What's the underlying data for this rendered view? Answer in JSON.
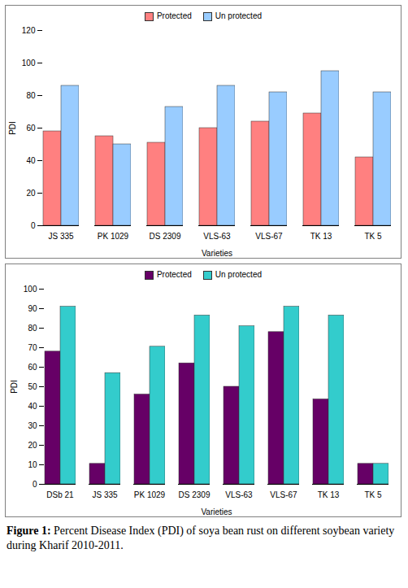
{
  "chart_data": [
    {
      "type": "bar",
      "x_label": "Varieties",
      "y_label": "PDI",
      "categories": [
        "JS 335",
        "PK 1029",
        "DS 2309",
        "VLS-63",
        "VLS-67",
        "TK 13",
        "TK 5"
      ],
      "series": [
        {
          "name": "Protected",
          "color": "#ff8080",
          "values": [
            58,
            55,
            51,
            60,
            64,
            69,
            42
          ]
        },
        {
          "name": "Un protected",
          "color": "#99ccff",
          "values": [
            86,
            50,
            73,
            86,
            82,
            95,
            82
          ]
        }
      ],
      "ylim": [
        0,
        120
      ],
      "yticks": [
        0,
        20,
        40,
        60,
        80,
        100,
        120
      ],
      "legend": "top"
    },
    {
      "type": "bar",
      "x_label": "Varieties",
      "y_label": "PDI",
      "categories": [
        "DSb 21",
        "JS 335",
        "PK 1029",
        "DS 2309",
        "VLS-63",
        "VLS-67",
        "TK 13",
        "TK 5"
      ],
      "series": [
        {
          "name": "Protected",
          "color": "#660066",
          "values": [
            68,
            10.5,
            46,
            62,
            50,
            78,
            43.5,
            10.5
          ]
        },
        {
          "name": "Un protected",
          "color": "#33cccc",
          "values": [
            91,
            57,
            70.5,
            86.5,
            81,
            91,
            86.5,
            10.5
          ]
        }
      ],
      "ylim": [
        0,
        100
      ],
      "yticks": [
        0,
        10,
        20,
        30,
        40,
        50,
        60,
        70,
        80,
        90,
        100
      ],
      "legend": "top"
    }
  ],
  "caption": {
    "label": "Figure 1:",
    "text": "Percent Disease Index (PDI) of soya bean rust on different soybean variety during Kharif 2010-2011."
  }
}
